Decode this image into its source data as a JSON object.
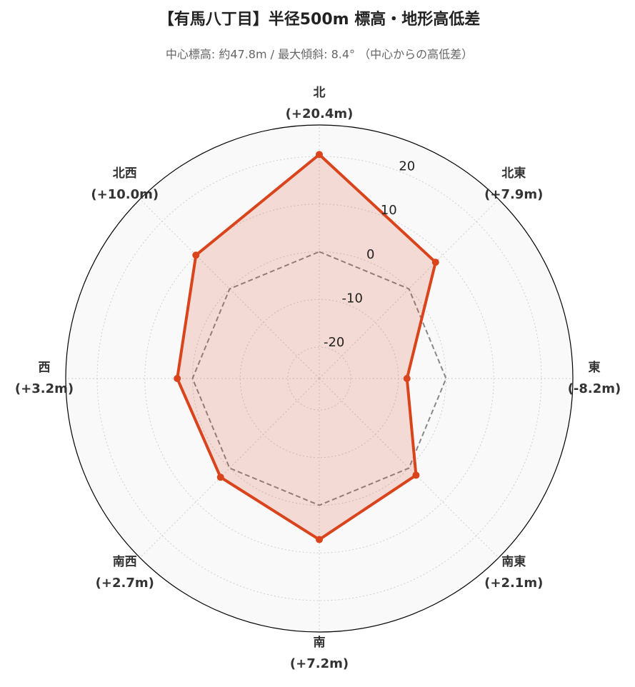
{
  "chart_data": {
    "type": "radar",
    "title": "【有馬八丁目】半径500m 標高・地形高低差",
    "subtitle": "中心標高: 約47.8m / 最大傾斜: 8.4° （中心からの高低差）",
    "categories": [
      "北",
      "北東",
      "東",
      "南東",
      "南",
      "南西",
      "西",
      "北西"
    ],
    "values": [
      20.4,
      7.9,
      -8.2,
      2.1,
      7.2,
      2.7,
      3.2,
      10.0
    ],
    "value_labels": [
      "(+20.4m)",
      "(+7.9m)",
      "(-8.2m)",
      "(+2.1m)",
      "(+7.2m)",
      "(+2.7m)",
      "(+3.2m)",
      "(+10.0m)"
    ],
    "color": "#d9441c",
    "reference_line": 0,
    "ylim": [
      -26.6,
      26.6
    ],
    "yticks": [
      -20,
      -10,
      0,
      10,
      20
    ],
    "grid": true
  }
}
